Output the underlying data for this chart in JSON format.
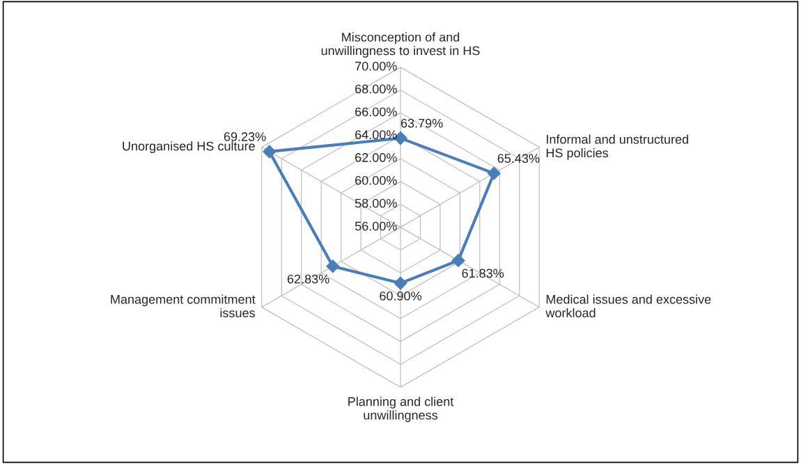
{
  "chart_data": {
    "type": "radar",
    "categories": [
      "Misconception of and\nunwillingness to invest in HS",
      "Informal and unstructured\nHS policies",
      "Medical issues and excessive\nworkload",
      "Planning and client\nunwillingness",
      "Management commitment\nissues",
      "Unorganised HS culture"
    ],
    "series": [
      {
        "color": "#4a7ebb",
        "values": [
          63.79,
          65.43,
          61.83,
          60.9,
          62.83,
          69.23
        ]
      }
    ],
    "value_labels": [
      "63.79%",
      "65.43%",
      "61.83%",
      "60.90%",
      "62.83%",
      "69.23%"
    ],
    "ylim": [
      56,
      70
    ],
    "yticks": [
      {
        "value": 56,
        "label": "56.00%"
      },
      {
        "value": 58,
        "label": "58.00%"
      },
      {
        "value": 60,
        "label": "60.00%"
      },
      {
        "value": 62,
        "label": "62.00%"
      },
      {
        "value": 64,
        "label": "64.00%"
      },
      {
        "value": 66,
        "label": "66.00%"
      },
      {
        "value": 68,
        "label": "68.00%"
      },
      {
        "value": 70,
        "label": "70.00%"
      }
    ],
    "grid": true,
    "marker": "diamond",
    "line_style": "solid",
    "legend": false
  }
}
